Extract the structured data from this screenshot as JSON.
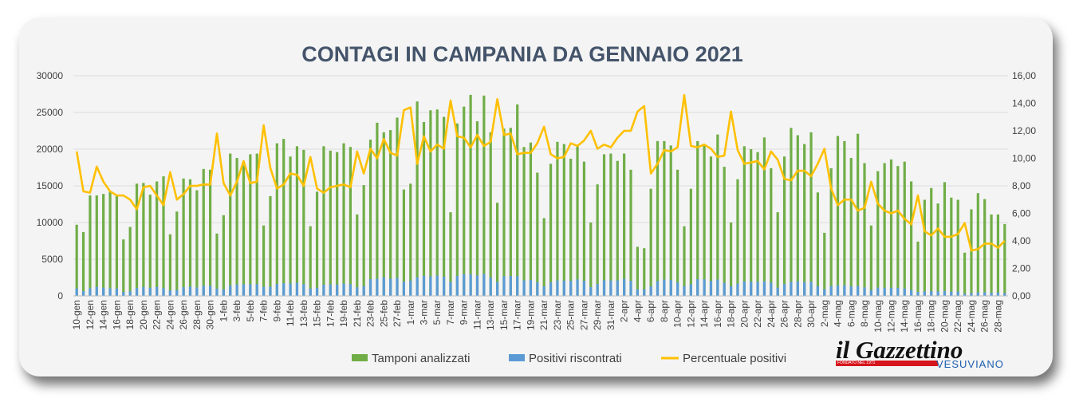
{
  "chart_data": {
    "type": "bar+line",
    "title": "CONTAGI IN CAMPANIA DA GENNAIO 2021",
    "y_left": {
      "min": 0,
      "max": 30000,
      "ticks": [
        "0",
        "5000",
        "10000",
        "15000",
        "20000",
        "25000",
        "30000"
      ]
    },
    "y_right": {
      "min": 0,
      "max": 16,
      "ticks": [
        "0,00",
        "2,00",
        "4,00",
        "6,00",
        "8,00",
        "10,00",
        "12,00",
        "14,00",
        "16,00"
      ]
    },
    "x_tick_labels": [
      "10-gen",
      "12-gen",
      "14-gen",
      "16-gen",
      "18-gen",
      "20-gen",
      "22-gen",
      "24-gen",
      "26-gen",
      "28-gen",
      "30-gen",
      "1-feb",
      "3-feb",
      "5-feb",
      "7-feb",
      "9-feb",
      "11-feb",
      "13-feb",
      "15-feb",
      "17-feb",
      "19-feb",
      "21-feb",
      "23-feb",
      "25-feb",
      "27-feb",
      "1-mar",
      "3-mar",
      "5-mar",
      "7-mar",
      "9-mar",
      "11-mar",
      "13-mar",
      "15-mar",
      "17-mar",
      "19-mar",
      "21-mar",
      "23-mar",
      "25-mar",
      "27-mar",
      "29-mar",
      "31-mar",
      "2-apr",
      "4-apr",
      "6-apr",
      "8-apr",
      "10-apr",
      "12-apr",
      "14-apr",
      "16-apr",
      "18-apr",
      "20-apr",
      "22-apr",
      "24-apr",
      "26-apr",
      "28-apr",
      "30-apr",
      "2-mag",
      "4-mag",
      "6-mag",
      "8-mag",
      "10-mag",
      "12-mag",
      "14-mag",
      "16-mag",
      "18-mag",
      "20-mag",
      "22-mag",
      "24-mag",
      "26-mag",
      "28-mag"
    ],
    "series": [
      {
        "name": "Tamponi analizzati",
        "type": "bar",
        "color": "#70ad47",
        "values": [
          9700,
          8700,
          13700,
          13700,
          13900,
          14200,
          13800,
          7700,
          9400,
          15300,
          15400,
          13800,
          15600,
          16300,
          8400,
          11500,
          16000,
          15900,
          14400,
          17300,
          17200,
          8500,
          11000,
          19400,
          18800,
          17800,
          19300,
          19400,
          9600,
          13600,
          20800,
          21400,
          19000,
          20400,
          19900,
          9500,
          14200,
          20400,
          19800,
          19600,
          20800,
          20300,
          11100,
          15100,
          21300,
          23600,
          22300,
          22600,
          24300,
          14500,
          15300,
          26500,
          23700,
          25300,
          25400,
          24400,
          11400,
          23500,
          25800,
          27400,
          23800,
          27300,
          22300,
          12700,
          22800,
          22900,
          26100,
          20300,
          20900,
          16800,
          10600,
          18000,
          21000,
          20700,
          18700,
          20500,
          18300,
          10000,
          15200,
          19300,
          19400,
          18400,
          19400,
          17200,
          6700,
          6500,
          14600,
          21100,
          21100,
          20500,
          17200,
          9500,
          14600,
          21100,
          20600,
          19000,
          22000,
          17600,
          10000,
          15900,
          20400,
          20000,
          19600,
          21600,
          17400,
          11400,
          19000,
          22900,
          21900,
          20700,
          22300,
          14100,
          8600,
          17400,
          21800,
          21100,
          18800,
          22100,
          18100,
          9600,
          17000,
          18100,
          18600,
          17700,
          18300,
          15600,
          7400,
          13100,
          14700,
          12600,
          15500,
          13400,
          13100,
          5900,
          11800,
          14000,
          13200,
          11100,
          11100,
          9800
        ]
      },
      {
        "name": "Positivi riscontrati",
        "type": "bar",
        "color": "#5b9bd5",
        "values": [
          1020,
          660,
          1040,
          1250,
          1130,
          1040,
          1020,
          540,
          640,
          1080,
          1220,
          1100,
          1230,
          1060,
          760,
          810,
          1190,
          1270,
          1150,
          1400,
          1400,
          1000,
          900,
          1420,
          1560,
          1590,
          1580,
          1610,
          1250,
          1260,
          1620,
          1730,
          1700,
          1790,
          1600,
          1020,
          1110,
          1540,
          1570,
          1560,
          1680,
          1610,
          1170,
          1350,
          2280,
          2360,
          2540,
          2350,
          2470,
          1960,
          2090,
          2540,
          2740,
          2660,
          2790,
          2620,
          1900,
          2730,
          2960,
          2960,
          2790,
          2990,
          2500,
          1900,
          2670,
          2710,
          2690,
          2120,
          2170,
          1860,
          1300,
          1850,
          2100,
          2090,
          2080,
          2240,
          2060,
          1200,
          1620,
          2130,
          2100,
          2120,
          2320,
          2060,
          900,
          900,
          1300,
          2020,
          2230,
          2160,
          1850,
          1360,
          1590,
          2270,
          2270,
          2040,
          2230,
          1790,
          1320,
          1680,
          1960,
          1950,
          1920,
          1990,
          1820,
          1130,
          1610,
          1930,
          1990,
          1880,
          1950,
          1350,
          920,
          1350,
          1440,
          1460,
          1320,
          1360,
          1160,
          800,
          1140,
          1120,
          1110,
          1100,
          1020,
          810,
          540,
          620,
          650,
          620,
          660,
          580,
          590,
          310,
          390,
          480,
          500,
          420,
          460,
          390
        ]
      },
      {
        "name": "Percentuale positivi",
        "type": "line",
        "color": "#ffc000",
        "axis": "right",
        "values": [
          10.5,
          7.6,
          7.5,
          9.4,
          8.3,
          7.6,
          7.3,
          7.3,
          7.0,
          6.3,
          7.9,
          8.0,
          7.3,
          6.6,
          9.0,
          7.0,
          7.4,
          8.0,
          8.0,
          8.1,
          8.1,
          11.8,
          8.2,
          7.3,
          8.3,
          9.8,
          8.2,
          8.3,
          12.4,
          9.3,
          7.8,
          8.1,
          8.9,
          8.8,
          8.0,
          10.1,
          7.8,
          7.5,
          7.9,
          8.0,
          8.1,
          7.9,
          10.5,
          8.9,
          10.7,
          10.0,
          11.4,
          10.4,
          10.2,
          13.5,
          13.7,
          9.6,
          11.6,
          10.5,
          11.0,
          10.7,
          14.2,
          11.6,
          11.5,
          10.8,
          11.7,
          10.9,
          11.2,
          14.3,
          11.7,
          11.8,
          10.3,
          10.4,
          10.4,
          11.1,
          12.3,
          10.3,
          10.0,
          10.1,
          11.1,
          10.9,
          11.3,
          12.0,
          10.7,
          11.0,
          10.8,
          11.5,
          12.0,
          12.0,
          13.4,
          13.8,
          8.9,
          9.6,
          10.6,
          10.5,
          10.8,
          14.6,
          10.9,
          10.8,
          11.0,
          10.7,
          10.1,
          10.2,
          13.4,
          10.6,
          9.6,
          9.7,
          9.8,
          9.2,
          10.5,
          9.9,
          8.5,
          8.4,
          9.1,
          9.1,
          8.7,
          9.6,
          10.7,
          7.8,
          6.6,
          7.0,
          7.0,
          6.2,
          6.4,
          8.3,
          6.7,
          6.2,
          6.0,
          6.2,
          5.6,
          5.2,
          7.3,
          4.7,
          4.4,
          4.9,
          4.3,
          4.3,
          4.5,
          5.3,
          3.3,
          3.4,
          3.8,
          3.8,
          3.5,
          4.0
        ]
      }
    ],
    "legend_position": "bottom"
  },
  "logo": {
    "brand": "il Gazzettino",
    "since": "FONDATO NEL 1971",
    "region": "VESUVIANO"
  }
}
